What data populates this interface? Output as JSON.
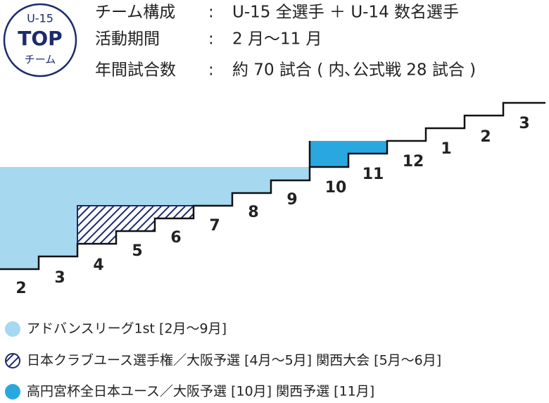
{
  "badge": {
    "line1": "U-15",
    "line2": "TOP",
    "line3": "チーム"
  },
  "info": [
    {
      "label": "チーム構成",
      "sep": ":",
      "value": "U-15 全選手 ＋ U-14 数名選手"
    },
    {
      "label": "活動期間",
      "sep": ":",
      "value": "2 月〜11 月"
    },
    {
      "label": "年間試合数",
      "sep": ":",
      "value": "約 70 試合 ( 内､公式戦 28 試合 )"
    }
  ],
  "steps": [
    "2",
    "3",
    "4",
    "5",
    "6",
    "7",
    "8",
    "9",
    "10",
    "11",
    "12",
    "1",
    "2",
    "3"
  ],
  "legend": [
    "アドバンスリーグ1st [2月〜9月]",
    "日本クラブユース選手権／大阪予選 [4月〜5月] 関西大会 [5月〜6月]",
    "高円宮杯全日本ユース／大阪予選 [10月] 関西予選 [11月]"
  ]
}
